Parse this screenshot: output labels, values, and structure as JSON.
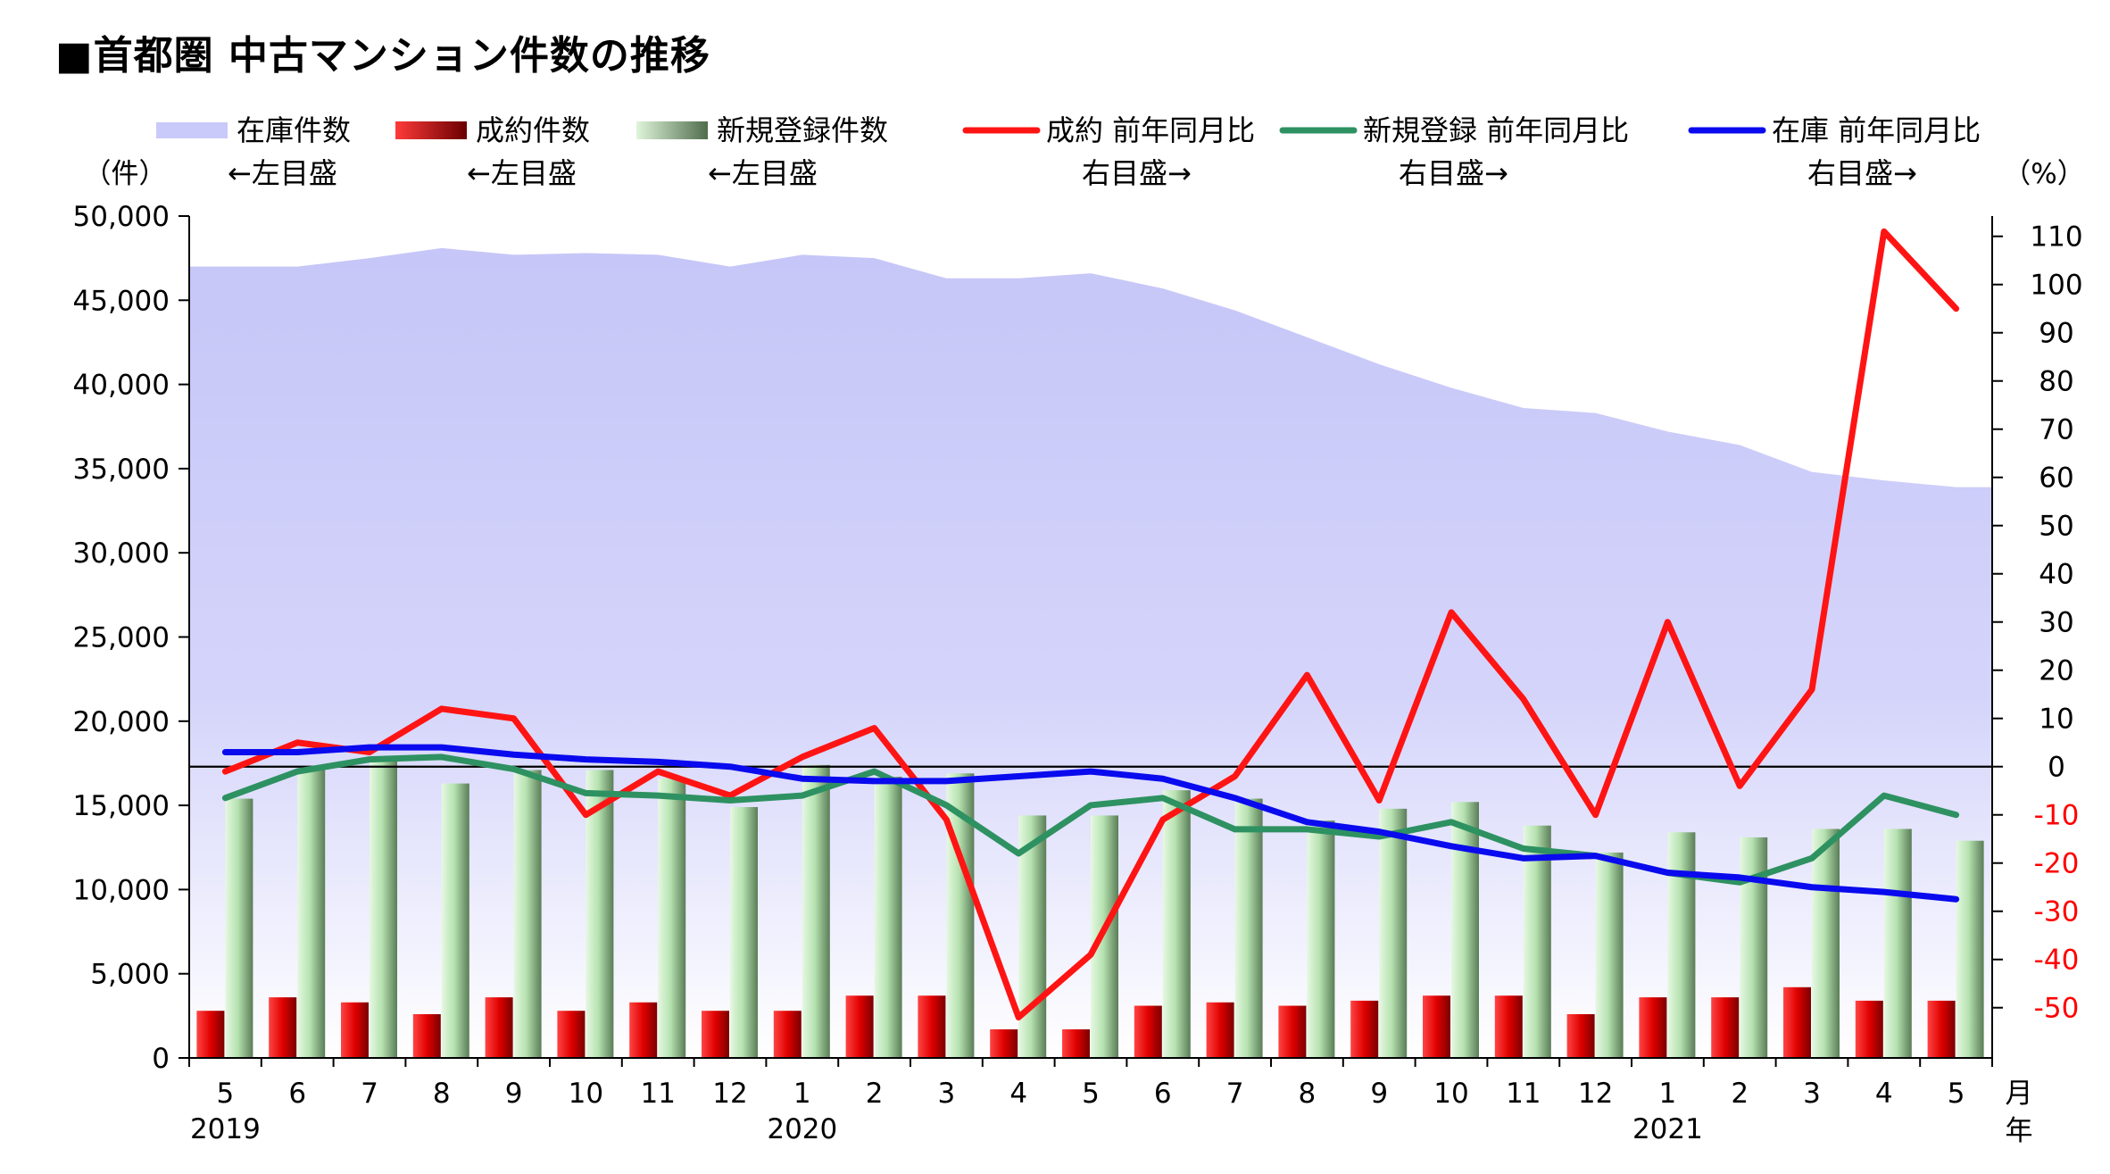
{
  "title": "■首都圏 中古マンション件数の推移",
  "legend": [
    {
      "label": "在庫件数",
      "sub": "←左目盛",
      "kind": "area",
      "color": "#c9c9fa"
    },
    {
      "label": "成約件数",
      "sub": "←左目盛",
      "kind": "bar",
      "color": "#e00000"
    },
    {
      "label": "新規登録件数",
      "sub": "←左目盛",
      "kind": "bar",
      "color": "#b9e4b4"
    },
    {
      "label": "成約 前年同月比",
      "sub": "右目盛→",
      "kind": "line",
      "color": "#ff1414"
    },
    {
      "label": "新規登録 前年同月比",
      "sub": "右目盛→",
      "kind": "line",
      "color": "#2e9161"
    },
    {
      "label": "在庫 前年同月比",
      "sub": "右目盛→",
      "kind": "line",
      "color": "#0a0aee"
    }
  ],
  "axes": {
    "left_unit": "（件）",
    "right_unit": "（%）",
    "x_unit_month": "月",
    "x_unit_year": "年"
  },
  "chart_data": {
    "type": "bar",
    "categories": [
      "5",
      "6",
      "7",
      "8",
      "9",
      "10",
      "11",
      "12",
      "1",
      "2",
      "3",
      "4",
      "5",
      "6",
      "7",
      "8",
      "9",
      "10",
      "11",
      "12",
      "1",
      "2",
      "3",
      "4",
      "5"
    ],
    "year_labels": [
      {
        "label": "2019",
        "index": 0
      },
      {
        "label": "2020",
        "index": 8
      },
      {
        "label": "2021",
        "index": 20
      }
    ],
    "y_left": {
      "min": 0,
      "max": 50000,
      "step": 5000,
      "tick_labels": [
        "0",
        "5,000",
        "10,000",
        "15,000",
        "20,000",
        "25,000",
        "30,000",
        "35,000",
        "40,000",
        "45,000",
        "50,000"
      ]
    },
    "y_right": {
      "min": -60,
      "max": 115,
      "ticks": [
        110,
        100,
        90,
        80,
        70,
        60,
        50,
        40,
        30,
        20,
        10,
        0,
        -10,
        -20,
        -30,
        -40,
        -50
      ],
      "negative_color": "#ff0000"
    },
    "series": [
      {
        "name": "在庫件数",
        "type": "area",
        "axis": "left",
        "values": [
          47000,
          47000,
          47500,
          48100,
          47700,
          47800,
          47700,
          47000,
          47700,
          47500,
          46300,
          46300,
          46600,
          45700,
          44400,
          42800,
          41200,
          39800,
          38600,
          38300,
          37200,
          36400,
          34800,
          34300,
          33900
        ]
      },
      {
        "name": "成約件数",
        "type": "bar",
        "axis": "left",
        "values": [
          2800,
          3600,
          3300,
          2600,
          3600,
          2800,
          3300,
          2800,
          2800,
          3700,
          3700,
          1700,
          1700,
          3100,
          3300,
          3100,
          3400,
          3700,
          3700,
          2600,
          3600,
          3600,
          4200,
          3400,
          3400
        ]
      },
      {
        "name": "新規登録件数",
        "type": "bar",
        "axis": "left",
        "values": [
          15400,
          17200,
          17900,
          16300,
          17100,
          17100,
          16600,
          14900,
          17400,
          16700,
          16900,
          14400,
          14400,
          15900,
          15400,
          14100,
          14800,
          15200,
          13800,
          12200,
          13400,
          13100,
          13600,
          13600,
          12900
        ]
      },
      {
        "name": "成約 前年同月比",
        "type": "line",
        "axis": "right",
        "values": [
          -1,
          5,
          3,
          12,
          10,
          -10,
          -1,
          -6,
          2,
          8,
          -11,
          -52,
          -39,
          -11,
          -2,
          19,
          -7,
          32,
          14,
          -10,
          30,
          -4,
          16,
          111,
          95
        ]
      },
      {
        "name": "新規登録 前年同月比",
        "type": "line",
        "axis": "right",
        "values": [
          -6.5,
          -1,
          1.5,
          2,
          -0.5,
          -5.5,
          -6,
          -7,
          -6,
          -1,
          -8,
          -18,
          -8,
          -6.5,
          -13,
          -13,
          -14.5,
          -11.5,
          -17,
          -18.5,
          -22,
          -24,
          -19,
          -6,
          -10
        ]
      },
      {
        "name": "在庫 前年同月比",
        "type": "line",
        "axis": "right",
        "values": [
          3,
          3,
          4,
          4,
          2.5,
          1.5,
          1,
          0,
          -2.5,
          -3,
          -3,
          -2,
          -1,
          -2.5,
          -6.5,
          -11.5,
          -13.5,
          -16.5,
          -19,
          -18.5,
          -22,
          -23,
          -25,
          -26,
          -27.5
        ]
      }
    ]
  }
}
